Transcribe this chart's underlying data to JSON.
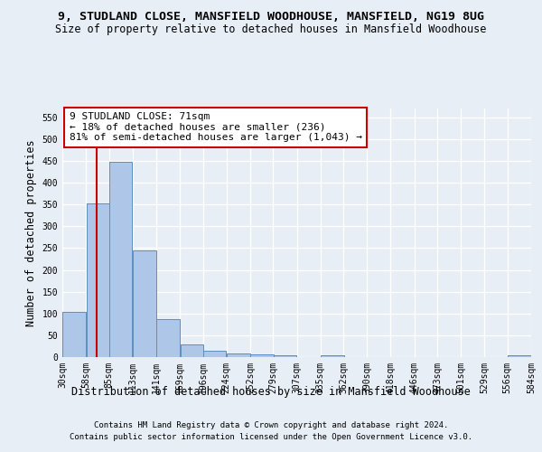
{
  "title_line1": "9, STUDLAND CLOSE, MANSFIELD WOODHOUSE, MANSFIELD, NG19 8UG",
  "title_line2": "Size of property relative to detached houses in Mansfield Woodhouse",
  "xlabel": "Distribution of detached houses by size in Mansfield Woodhouse",
  "ylabel": "Number of detached properties",
  "footer_line1": "Contains HM Land Registry data © Crown copyright and database right 2024.",
  "footer_line2": "Contains public sector information licensed under the Open Government Licence v3.0.",
  "bins": [
    30,
    58,
    85,
    113,
    141,
    169,
    196,
    224,
    252,
    279,
    307,
    335,
    362,
    390,
    418,
    446,
    473,
    501,
    529,
    556,
    584
  ],
  "bar_values": [
    103,
    353,
    447,
    245,
    88,
    30,
    14,
    9,
    6,
    5,
    0,
    5,
    0,
    0,
    0,
    0,
    0,
    0,
    0,
    5
  ],
  "bar_color": "#aec6e8",
  "bar_edge_color": "#5a8fc2",
  "property_size": 71,
  "vline_color": "#cc0000",
  "annotation_text": "9 STUDLAND CLOSE: 71sqm\n← 18% of detached houses are smaller (236)\n81% of semi-detached houses are larger (1,043) →",
  "annotation_box_color": "#ffffff",
  "annotation_box_edge_color": "#cc0000",
  "ylim": [
    0,
    570
  ],
  "yticks": [
    0,
    50,
    100,
    150,
    200,
    250,
    300,
    350,
    400,
    450,
    500,
    550
  ],
  "bg_color": "#e8eef5",
  "plot_bg_color": "#e8eef5",
  "grid_color": "#ffffff",
  "title_fontsize": 9.5,
  "subtitle_fontsize": 8.5,
  "axis_label_fontsize": 8.5,
  "tick_fontsize": 7,
  "footer_fontsize": 6.5,
  "annotation_fontsize": 8
}
